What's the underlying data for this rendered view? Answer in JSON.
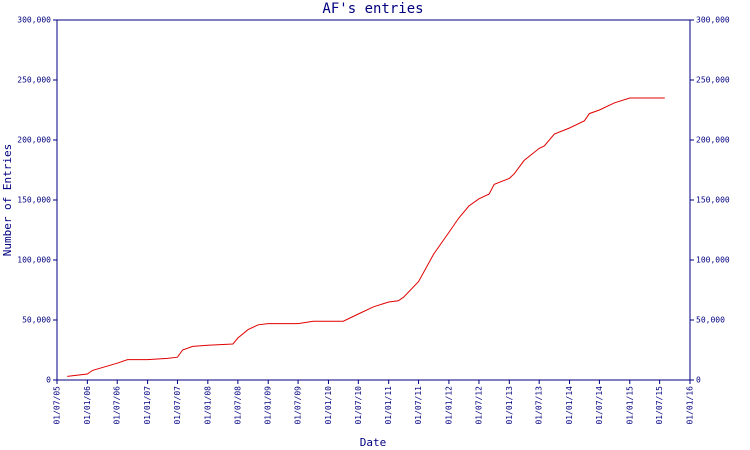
{
  "chart_data": {
    "type": "line",
    "title": "AF's entries",
    "x_label": "Date",
    "y_label": "Number of Entries",
    "x": [
      "2005-09-01",
      "2006-01-01",
      "2006-02-01",
      "2006-07-01",
      "2006-09-01",
      "2007-01-01",
      "2007-05-01",
      "2007-07-01",
      "2007-08-01",
      "2007-10-01",
      "2008-01-01",
      "2008-06-01",
      "2008-07-01",
      "2008-09-01",
      "2008-11-01",
      "2009-01-01",
      "2009-07-01",
      "2009-10-01",
      "2010-04-01",
      "2010-07-01",
      "2010-10-01",
      "2011-01-01",
      "2011-03-01",
      "2011-04-01",
      "2011-07-01",
      "2011-10-01",
      "2012-01-01",
      "2012-03-01",
      "2012-05-01",
      "2012-07-01",
      "2012-09-01",
      "2012-10-01",
      "2013-01-01",
      "2013-02-01",
      "2013-04-01",
      "2013-07-01",
      "2013-08-01",
      "2013-10-01",
      "2014-01-01",
      "2014-04-01",
      "2014-05-01",
      "2014-07-01",
      "2014-10-01",
      "2015-01-01",
      "2015-08-01"
    ],
    "series": [
      {
        "name": "entries",
        "color": "#e00000",
        "values": [
          3000,
          5000,
          8000,
          14000,
          17000,
          17000,
          18000,
          19000,
          25000,
          28000,
          29000,
          30000,
          35000,
          42000,
          46000,
          47000,
          47000,
          49000,
          49000,
          55000,
          61000,
          65000,
          66000,
          69000,
          82000,
          105000,
          123000,
          135000,
          145000,
          151000,
          155000,
          163000,
          168000,
          172000,
          183000,
          193000,
          195000,
          205000,
          210000,
          216000,
          222000,
          225000,
          231000,
          235000,
          235000
        ]
      }
    ],
    "xlim": [
      "2005-07-01",
      "2016-01-01"
    ],
    "xticks": [
      {
        "value": "2005-07-01",
        "label": "01/07/05"
      },
      {
        "value": "2006-01-01",
        "label": "01/01/06"
      },
      {
        "value": "2006-07-01",
        "label": "01/07/06"
      },
      {
        "value": "2007-01-01",
        "label": "01/01/07"
      },
      {
        "value": "2007-07-01",
        "label": "01/07/07"
      },
      {
        "value": "2008-01-01",
        "label": "01/01/08"
      },
      {
        "value": "2008-07-01",
        "label": "01/07/08"
      },
      {
        "value": "2009-01-01",
        "label": "01/01/09"
      },
      {
        "value": "2009-07-01",
        "label": "01/07/09"
      },
      {
        "value": "2010-01-01",
        "label": "01/01/10"
      },
      {
        "value": "2010-07-01",
        "label": "01/07/10"
      },
      {
        "value": "2011-01-01",
        "label": "01/01/11"
      },
      {
        "value": "2011-07-01",
        "label": "01/07/11"
      },
      {
        "value": "2012-01-01",
        "label": "01/01/12"
      },
      {
        "value": "2012-07-01",
        "label": "01/07/12"
      },
      {
        "value": "2013-01-01",
        "label": "01/01/13"
      },
      {
        "value": "2013-07-01",
        "label": "01/07/13"
      },
      {
        "value": "2014-01-01",
        "label": "01/01/14"
      },
      {
        "value": "2014-07-01",
        "label": "01/07/14"
      },
      {
        "value": "2015-01-01",
        "label": "01/01/15"
      },
      {
        "value": "2015-07-01",
        "label": "01/07/15"
      },
      {
        "value": "2016-01-01",
        "label": "01/01/16"
      }
    ],
    "ylim": [
      0,
      300000
    ],
    "yticks": [
      0,
      {
        "value": 50000,
        "label": "50,000"
      },
      {
        "value": 100000,
        "label": "100,000"
      },
      {
        "value": 150000,
        "label": "150,000"
      },
      {
        "value": 200000,
        "label": "200,000"
      },
      {
        "value": 250000,
        "label": "250,000"
      },
      {
        "value": 300000,
        "label": "300,000"
      }
    ],
    "grid": false,
    "axis_color": "#000080"
  }
}
